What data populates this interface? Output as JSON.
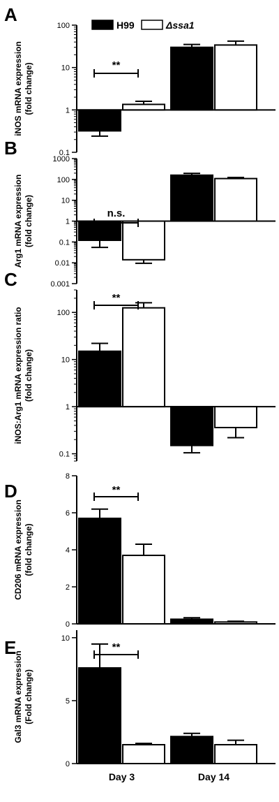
{
  "legend": [
    {
      "name": "H99",
      "color": "#000000"
    },
    {
      "name": "Δssa1",
      "color": "#ffffff"
    }
  ],
  "chart_data": [
    {
      "type": "bar",
      "panel": "A",
      "scale": "log",
      "baseline": 1,
      "ylim": [
        0.1,
        100
      ],
      "yticks": [
        0.1,
        1,
        10,
        100
      ],
      "ytick_labels": [
        "0.1",
        "1",
        "10",
        "100"
      ],
      "ylabel_lines": [
        "iNOS mRNA expression",
        "(fold change)"
      ],
      "categories": [
        "Day 3",
        "Day 14"
      ],
      "series": [
        {
          "name": "H99",
          "values": [
            0.32,
            30
          ],
          "errors": [
            0.24,
            35
          ]
        },
        {
          "name": "Δssa1",
          "values": [
            1.35,
            34
          ],
          "errors": [
            1.6,
            42
          ]
        }
      ],
      "significance": [
        {
          "group": 0,
          "label": "**"
        }
      ]
    },
    {
      "type": "bar",
      "panel": "B",
      "scale": "log",
      "baseline": 1,
      "ylim": [
        0.001,
        1000
      ],
      "yticks": [
        0.001,
        0.01,
        0.1,
        1,
        10,
        100,
        1000
      ],
      "ytick_labels": [
        "0.001",
        "0.01",
        "0.1",
        "1",
        "10",
        "100",
        "1000"
      ],
      "ylabel_lines": [
        "Arg1 mRNA expression",
        "(fold change)"
      ],
      "categories": [
        "Day 3",
        "Day 14"
      ],
      "series": [
        {
          "name": "H99",
          "values": [
            0.12,
            160
          ],
          "errors": [
            0.055,
            195
          ]
        },
        {
          "name": "Δssa1",
          "values": [
            0.014,
            110
          ],
          "errors": [
            0.0095,
            125
          ]
        }
      ],
      "significance": [
        {
          "group": 0,
          "label": "n.s."
        }
      ]
    },
    {
      "type": "bar",
      "panel": "C",
      "scale": "log",
      "baseline": 1,
      "ylim": [
        0.07,
        300
      ],
      "yticks": [
        0.1,
        1,
        10,
        100
      ],
      "ytick_labels": [
        "0.1",
        "1",
        "10",
        "100"
      ],
      "ylabel_lines": [
        "iNOS:Arg1 mRNA expression ratio",
        "(fold change)"
      ],
      "categories": [
        "Day 3",
        "Day 14"
      ],
      "series": [
        {
          "name": "H99",
          "values": [
            15,
            0.15
          ],
          "errors": [
            22,
            0.105
          ]
        },
        {
          "name": "Δssa1",
          "values": [
            125,
            0.36
          ],
          "errors": [
            160,
            0.22
          ]
        }
      ],
      "significance": [
        {
          "group": 0,
          "label": "**"
        }
      ]
    },
    {
      "type": "bar",
      "panel": "D",
      "scale": "linear",
      "baseline": 0,
      "ylim": [
        0,
        8
      ],
      "yticks": [
        0,
        2,
        4,
        6,
        8
      ],
      "ytick_labels": [
        "0",
        "2",
        "4",
        "6",
        "8"
      ],
      "ylabel_lines": [
        "CD206 mRNA expression",
        "(fold change)"
      ],
      "categories": [
        "Day 3",
        "Day 14"
      ],
      "series": [
        {
          "name": "H99",
          "values": [
            5.7,
            0.25
          ],
          "errors": [
            6.2,
            0.33
          ]
        },
        {
          "name": "Δssa1",
          "values": [
            3.7,
            0.1
          ],
          "errors": [
            4.3,
            0.14
          ]
        }
      ],
      "significance": [
        {
          "group": 0,
          "label": "**"
        }
      ]
    },
    {
      "type": "bar",
      "panel": "E",
      "scale": "linear",
      "baseline": 0,
      "ylim": [
        0,
        10.6
      ],
      "yticks": [
        0,
        5,
        10
      ],
      "ytick_labels": [
        "0",
        "5",
        "10"
      ],
      "ylabel_lines": [
        "Gal3 mRNA expression",
        "(Fold change)"
      ],
      "categories": [
        "Day 3",
        "Day 14"
      ],
      "series": [
        {
          "name": "H99",
          "values": [
            7.6,
            2.15
          ],
          "errors": [
            9.5,
            2.4
          ]
        },
        {
          "name": "Δssa1",
          "values": [
            1.5,
            1.5
          ],
          "errors": [
            1.6,
            1.85
          ]
        }
      ],
      "significance": [
        {
          "group": 0,
          "label": "**"
        }
      ],
      "show_category_labels": true
    }
  ]
}
